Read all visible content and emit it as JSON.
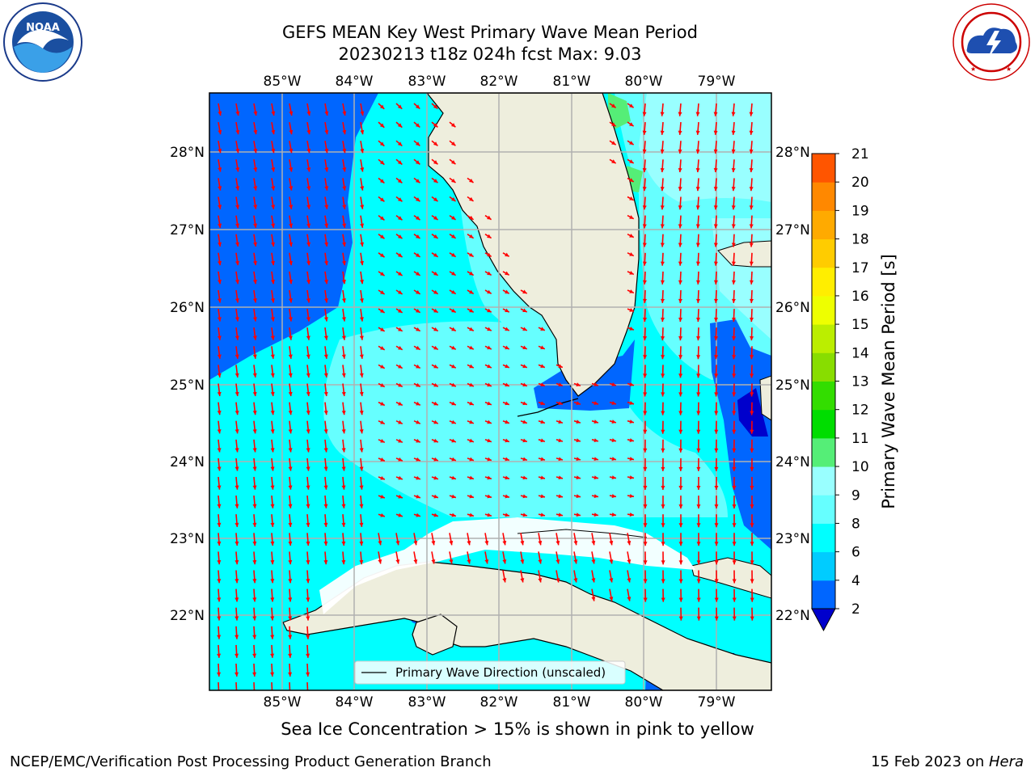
{
  "header": {
    "title_line1": "GEFS MEAN Key West Primary Wave Mean Period",
    "title_line2": "20230213 t18z 024h fcst   Max: 9.03"
  },
  "logos": {
    "noaa": {
      "label": "NOAA",
      "ring_text": "NATIONAL OCEANIC AND ATMOSPHERIC ADMINISTRATION · U.S. DEPARTMENT OF COMMERCE"
    },
    "nws": {
      "ring_text": "NATIONAL WEATHER SERVICE"
    }
  },
  "map": {
    "lon_labels": [
      "85°W",
      "84°W",
      "83°W",
      "82°W",
      "81°W",
      "80°W",
      "79°W"
    ],
    "lat_labels": [
      "28°N",
      "27°N",
      "26°N",
      "25°N",
      "24°N",
      "23°N",
      "22°N"
    ],
    "legend_label": "Primary Wave Direction (unscaled)",
    "arrow_color": "#ff0000",
    "land_color": "#eeeedd"
  },
  "colorbar": {
    "label": "Primary Wave Mean Period [s]",
    "ticks": [
      "2",
      "4",
      "6",
      "8",
      "9",
      "10",
      "11",
      "12",
      "13",
      "14",
      "15",
      "16",
      "17",
      "18",
      "19",
      "20",
      "21"
    ],
    "colors": [
      "#0066ff",
      "#00ccff",
      "#00ffff",
      "#66ffff",
      "#99ffff",
      "#55ee77",
      "#00dd00",
      "#33dd00",
      "#88dd00",
      "#bbee00",
      "#eeff00",
      "#ffee00",
      "#ffcc00",
      "#ffaa00",
      "#ff8800",
      "#ff5500",
      "#ff2200",
      "#ff0000"
    ],
    "extend_color": "#0000cc"
  },
  "subtitle": "Sea Ice Concentration > 15% is shown in pink to yellow",
  "footer": {
    "left": "NCEP/EMC/Verification Post Processing Product Generation Branch",
    "date": "15 Feb 2023 on ",
    "host": "Hera"
  }
}
